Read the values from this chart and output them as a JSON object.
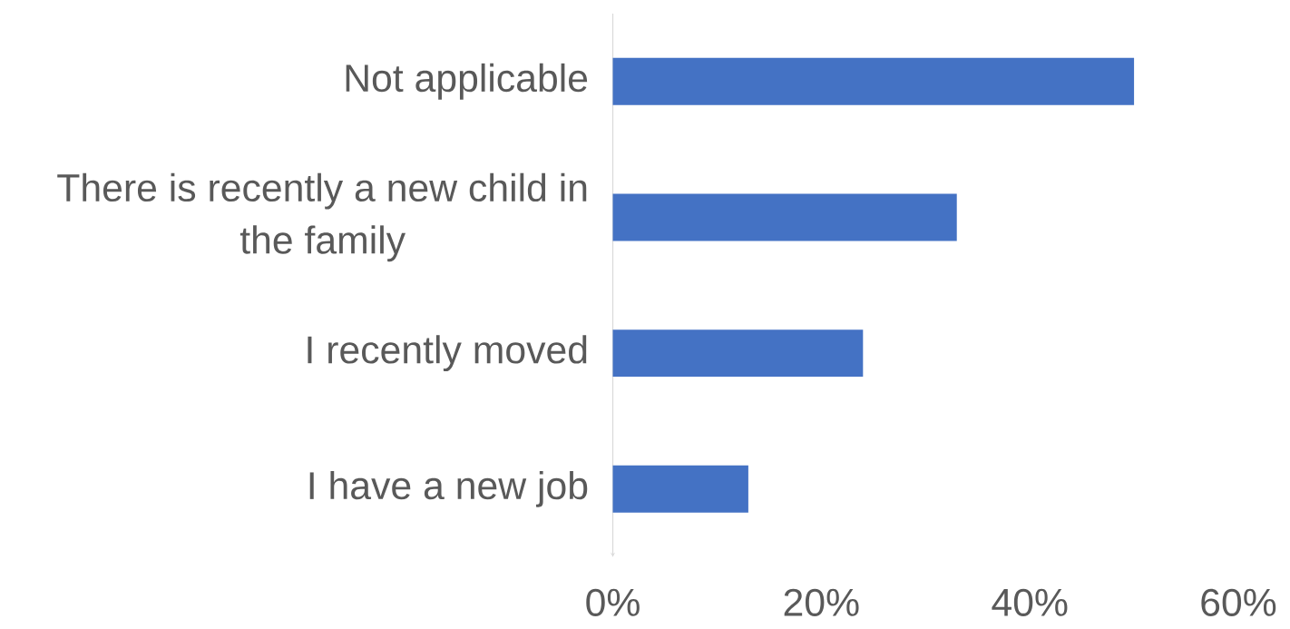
{
  "chart_data": {
    "type": "bar",
    "orientation": "horizontal",
    "categories": [
      "Not applicable",
      "There is recently a new child in the family",
      "I recently moved",
      "I have a new job"
    ],
    "values": [
      50,
      33,
      24,
      13
    ],
    "color": "#4472c4",
    "xlim": [
      0,
      60
    ],
    "xticks": [
      {
        "value": 0,
        "label": "0%"
      },
      {
        "value": 20,
        "label": "20%"
      },
      {
        "value": 40,
        "label": "40%"
      },
      {
        "value": 60,
        "label": "60%"
      }
    ]
  }
}
